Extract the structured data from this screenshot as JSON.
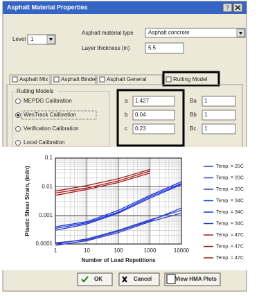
{
  "window": {
    "title": "Asphalt Material Properties",
    "help": "?"
  },
  "form": {
    "level_label": "Level",
    "level": 1,
    "material_type_label": "Asphalt material type",
    "material_type": "Asphalt concrete",
    "thickness_label": "Layer thickness (in)",
    "thickness": 5.5
  },
  "tabs": [
    "Asphalt Mix",
    "Asphalt Binder",
    "Asphalt General",
    "Rutting Model"
  ],
  "active_tab": 3,
  "rutting": {
    "group_label": "Rutting Models",
    "options": [
      "MEPDG Calibration",
      "WesTrack Calibration",
      "Verification Calibration",
      "Local Calibration"
    ],
    "selected": 1,
    "params": [
      {
        "label": "a",
        "value": 1.427
      },
      {
        "label": "b",
        "value": 0.04
      },
      {
        "label": "c",
        "value": 0.23
      }
    ],
    "betas": [
      {
        "label": "Ba",
        "value": 1
      },
      {
        "label": "Bb",
        "value": 1
      },
      {
        "label": "Bc",
        "value": 1
      }
    ]
  },
  "chart_data": {
    "type": "line",
    "x_label": "Number of Load Repetitions",
    "y_label": "Plastic Shear Strain, (in/in)",
    "x": [
      1,
      10,
      100,
      1000,
      10000
    ],
    "xlim": [
      1,
      10000
    ],
    "ylim": [
      0.0001,
      0.1
    ],
    "xticks": [
      1,
      10,
      100,
      1000,
      10000
    ],
    "yticks": [
      0.0001,
      0.001,
      0.01,
      0.1
    ],
    "log_x": true,
    "log_y": true,
    "grid": true,
    "series": [
      {
        "name": "Temp. = 20C",
        "color": "#2b3fc8",
        "values": [
          9e-05,
          0.00013,
          0.00025,
          0.0006,
          0.0012
        ]
      },
      {
        "name": "Temp. = 20C",
        "color": "#2b3fc8",
        "values": [
          0.0001,
          0.00015,
          0.0003,
          0.0007,
          0.0015
        ]
      },
      {
        "name": "Temp. = 20C",
        "color": "#2b3fc8",
        "values": [
          0.00011,
          0.00014,
          0.00028,
          0.00065,
          0.0018
        ]
      },
      {
        "name": "Temp. = 34C",
        "color": "#1530d8",
        "values": [
          0.0003,
          0.0005,
          0.0012,
          0.004,
          0.012
        ]
      },
      {
        "name": "Temp. = 34C",
        "color": "#1530d8",
        "values": [
          0.0004,
          0.0006,
          0.0015,
          0.005,
          0.015
        ]
      },
      {
        "name": "Temp. = 34C",
        "color": "#1530d8",
        "values": [
          0.00035,
          0.00055,
          0.0013,
          0.0045,
          0.013
        ]
      },
      {
        "name": "Temp. = 47C",
        "color": "#a51a1a",
        "values": [
          0.006,
          0.009,
          0.016,
          0.035,
          null
        ]
      },
      {
        "name": "Temp. = 47C",
        "color": "#a51a1a",
        "values": [
          0.007,
          0.011,
          0.019,
          0.04,
          null
        ]
      },
      {
        "name": "Temp. = 47C",
        "color": "#a51a1a",
        "values": [
          0.005,
          0.008,
          0.014,
          0.03,
          null
        ]
      }
    ],
    "legend": "right"
  },
  "buttons": [
    "OK",
    "Cancel",
    "View HMA Plots"
  ]
}
